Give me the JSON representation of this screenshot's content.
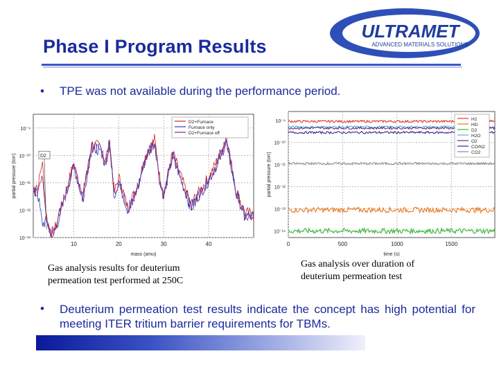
{
  "slide": {
    "title": "Phase I Program Results",
    "bullets": [
      "TPE was not available during the performance period.",
      "Deuterium permeation test results indicate the concept has high potential for meeting ITER tritium barrier requirements for TBMs."
    ],
    "bullet_symbol": "•"
  },
  "logo": {
    "name": "ULTRAMET",
    "tagline": "ADVANCED MATERIALS SOLUTIONS",
    "colors": {
      "ring": "#2f4fb8",
      "inner": "#ffffff",
      "text": "#1f3c9e"
    }
  },
  "captions": {
    "left": [
      "Gas analysis results for deuterium",
      "permeation test performed at 250C"
    ],
    "right": [
      "Gas analysis over duration of",
      "deuterium permeation test"
    ]
  },
  "chart_data": [
    {
      "type": "line",
      "title": "",
      "xlabel": "mass (amu)",
      "ylabel": "partial pressure (torr)",
      "xlim": [
        1,
        50
      ],
      "ylim_log10": [
        -13,
        -8.5
      ],
      "xticks": [
        10,
        20,
        30,
        40
      ],
      "yticks": [
        "10⁻⁹",
        "10⁻¹⁰",
        "10⁻¹¹",
        "10⁻¹²",
        "10⁻¹³"
      ],
      "annotation": "D2",
      "legend": [
        "D2+Furnace",
        "Furnace only",
        "D2+Furnace off"
      ],
      "colors": [
        "#d42020",
        "#2a3fb0",
        "#7a2a8a"
      ],
      "series": [
        {
          "name": "D2+Furnace",
          "x": [
            2,
            3,
            4,
            5,
            6,
            10,
            12,
            14,
            16,
            17,
            18,
            19,
            20,
            22,
            24,
            26,
            28,
            29,
            30,
            32,
            36,
            40,
            41,
            44,
            46,
            48
          ],
          "log10_y": [
            -11.2,
            -10.2,
            -12.3,
            -12.9,
            -12.6,
            -10.3,
            -11.5,
            -9.6,
            -9.7,
            -10.2,
            -9.5,
            -11.4,
            -10.8,
            -11.9,
            -11.2,
            -10.0,
            -9.4,
            -10.7,
            -11.4,
            -9.9,
            -11.8,
            -10.8,
            -10.5,
            -9.4,
            -11.2,
            -12.1
          ]
        },
        {
          "name": "Furnace only",
          "x": [
            2,
            3,
            4,
            5,
            6,
            10,
            12,
            14,
            16,
            17,
            18,
            19,
            20,
            22,
            24,
            26,
            28,
            29,
            30,
            32,
            36,
            40,
            41,
            44,
            46,
            48
          ],
          "log10_y": [
            -11.4,
            -12.5,
            -12.4,
            -12.9,
            -12.7,
            -10.4,
            -11.6,
            -9.7,
            -9.8,
            -10.3,
            -9.6,
            -11.5,
            -10.9,
            -12.0,
            -11.3,
            -10.1,
            -9.5,
            -10.8,
            -11.5,
            -10.0,
            -11.9,
            -10.9,
            -10.6,
            -9.5,
            -11.3,
            -12.2
          ]
        },
        {
          "name": "D2+Furnace off",
          "x": [
            2,
            3,
            4,
            5,
            6,
            10,
            12,
            14,
            16,
            17,
            18,
            19,
            20,
            22,
            24,
            26,
            28,
            29,
            30,
            32,
            36,
            40,
            41,
            44,
            46,
            48
          ],
          "log10_y": [
            -11.3,
            -10.6,
            -12.3,
            -12.9,
            -12.6,
            -10.4,
            -11.6,
            -9.7,
            -9.8,
            -10.3,
            -9.6,
            -11.5,
            -10.9,
            -12.0,
            -11.3,
            -10.1,
            -9.5,
            -10.8,
            -11.5,
            -10.0,
            -11.9,
            -10.9,
            -10.6,
            -9.5,
            -11.3,
            -12.2
          ]
        }
      ]
    },
    {
      "type": "line",
      "title": "",
      "xlabel": "time (s)",
      "ylabel": "partial pressure (torr)",
      "xlim": [
        0,
        1900
      ],
      "ylim_log10": [
        -14.3,
        -8.6
      ],
      "xticks": [
        0,
        500,
        1000,
        1500
      ],
      "yticks": [
        "10⁻⁹",
        "10⁻¹⁰",
        "10⁻¹¹",
        "10⁻¹²",
        "10⁻¹³",
        "10⁻¹⁴"
      ],
      "legend": [
        "H2",
        "HD",
        "D2",
        "H2O",
        "O2",
        "CO/N2",
        "CO2"
      ],
      "colors": [
        "#e23a2a",
        "#e8781e",
        "#3ab83a",
        "#5aa8e0",
        "#6a2a7a",
        "#2a2a8a",
        "#888888"
      ],
      "series": [
        {
          "name": "H2",
          "x": [
            0,
            1900
          ],
          "log10_y": [
            -9.05,
            -9.05
          ]
        },
        {
          "name": "HD",
          "x": [
            0,
            1900
          ],
          "log10_y": [
            -13.05,
            -13.05
          ]
        },
        {
          "name": "D2",
          "x": [
            0,
            1900
          ],
          "log10_y": [
            -14.0,
            -14.0
          ]
        },
        {
          "name": "H2O",
          "x": [
            0,
            1900
          ],
          "log10_y": [
            -9.3,
            -9.3
          ]
        },
        {
          "name": "O2",
          "x": [
            0,
            1900
          ],
          "log10_y": [
            -9.35,
            -9.35
          ]
        },
        {
          "name": "CO/N2",
          "x": [
            0,
            1900
          ],
          "log10_y": [
            -9.55,
            -9.55
          ]
        },
        {
          "name": "CO2",
          "x": [
            0,
            1900
          ],
          "log10_y": [
            -10.95,
            -10.95
          ]
        }
      ]
    }
  ]
}
